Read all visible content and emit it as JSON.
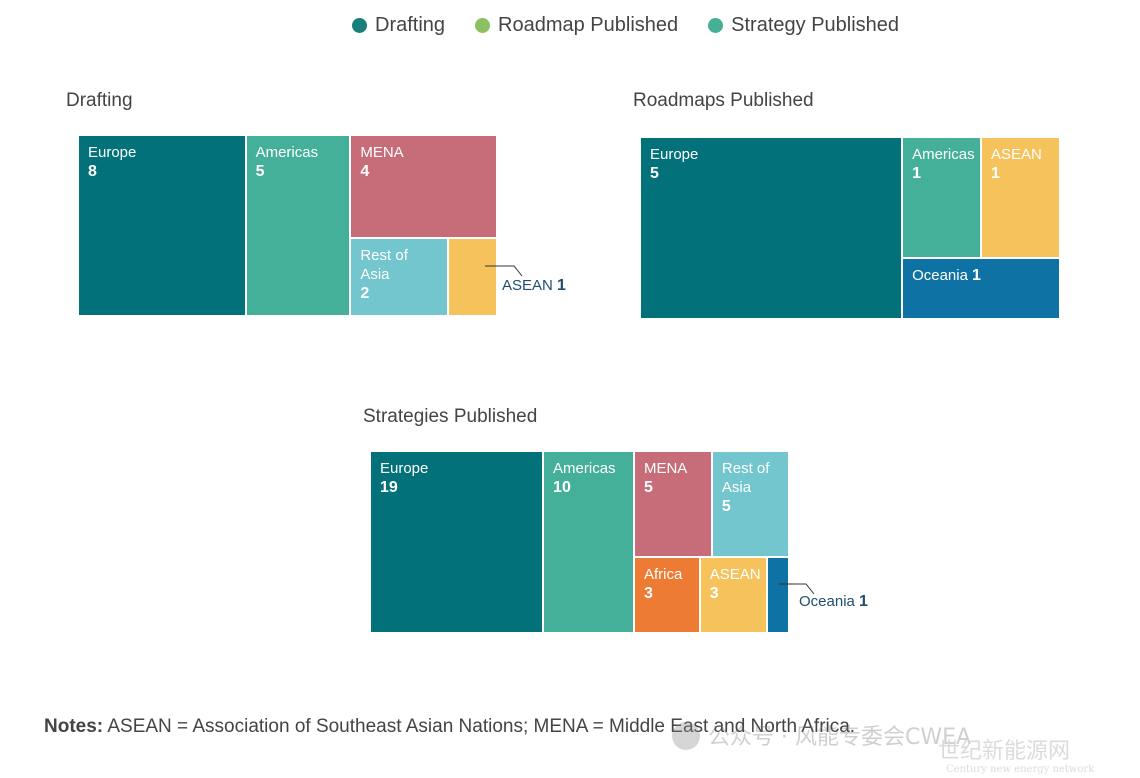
{
  "legend": {
    "items": [
      {
        "label": "Drafting",
        "color": "#1a7f7c"
      },
      {
        "label": "Roadmap Published",
        "color": "#8cc063"
      },
      {
        "label": "Strategy Published",
        "color": "#45b095"
      }
    ]
  },
  "chart_data": [
    {
      "type": "treemap",
      "title": "Drafting",
      "cells": [
        {
          "name": "Europe",
          "value": 8,
          "color": "#02717a"
        },
        {
          "name": "Americas",
          "value": 5,
          "color": "#45b09a"
        },
        {
          "name": "MENA",
          "value": 4,
          "color": "#c76d79"
        },
        {
          "name": "Rest of Asia",
          "value": 2,
          "color": "#73c6cd"
        },
        {
          "name": "ASEAN",
          "value": 1,
          "color": "#f6c25c"
        }
      ]
    },
    {
      "type": "treemap",
      "title": "Roadmaps Published",
      "cells": [
        {
          "name": "Europe",
          "value": 5,
          "color": "#02717a"
        },
        {
          "name": "Americas",
          "value": 1,
          "color": "#45b09a"
        },
        {
          "name": "ASEAN",
          "value": 1,
          "color": "#f6c25c"
        },
        {
          "name": "Oceania",
          "value": 1,
          "color": "#0e72a5"
        }
      ]
    },
    {
      "type": "treemap",
      "title": "Strategies Published",
      "cells": [
        {
          "name": "Europe",
          "value": 19,
          "color": "#02717a"
        },
        {
          "name": "Americas",
          "value": 10,
          "color": "#45b09a"
        },
        {
          "name": "MENA",
          "value": 5,
          "color": "#c76d79"
        },
        {
          "name": "Rest of Asia",
          "value": 5,
          "color": "#73c6cd"
        },
        {
          "name": "Africa",
          "value": 3,
          "color": "#ee7b33"
        },
        {
          "name": "ASEAN",
          "value": 3,
          "color": "#f6c25c"
        },
        {
          "name": "Oceania",
          "value": 1,
          "color": "#0e72a5"
        }
      ]
    }
  ],
  "notes": {
    "prefix": "Notes:",
    "text": " ASEAN = Association of Southeast Asian Nations; MENA = Middle East and North Africa."
  },
  "watermark": {
    "line1": "公众号 · 风能专委会CWEA",
    "line2": "世纪新能源网",
    "line3": "Century new energy network"
  }
}
